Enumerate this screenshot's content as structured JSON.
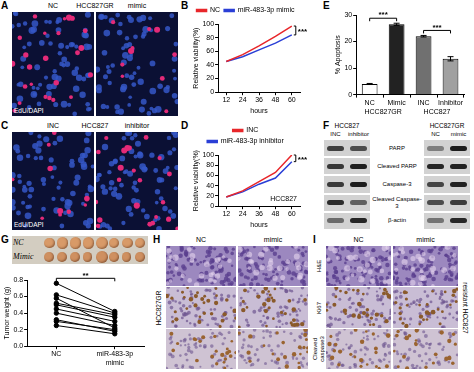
{
  "chart_data": [
    {
      "letter": "B",
      "type": "line",
      "x_label": "hours",
      "y_label": "Relative viability(%)",
      "x": [
        12,
        24,
        36,
        48,
        60
      ],
      "xlim": [
        6,
        66
      ],
      "xticks": [
        12,
        24,
        36,
        48,
        60
      ],
      "ylim": [
        0,
        100
      ],
      "yticks": [
        0,
        20,
        40,
        60,
        80,
        100
      ],
      "grid": false,
      "legend": "top",
      "series": [
        {
          "name": "NC",
          "color": "#e8262a",
          "values": [
            45,
            55,
            68,
            82,
            97
          ]
        },
        {
          "name": "miR-483-3p mimic",
          "color": "#2a3fd6",
          "values": [
            45,
            52,
            62,
            72,
            84
          ]
        }
      ],
      "annotations": [
        {
          "text": "***",
          "between": [
            "NC",
            "miR-483-3p mimic"
          ]
        }
      ]
    },
    {
      "letter": "E",
      "type": "bar",
      "y_label": "% Apoptosis",
      "categories": [
        "NC",
        "Mimic",
        "INC",
        "Inhibitor"
      ],
      "values": [
        4,
        26.5,
        22,
        13.5
      ],
      "errors": [
        0.2,
        0.4,
        0.3,
        0.8
      ],
      "colors": [
        "#ffffff",
        "#222222",
        "#707070",
        "#a0a0a0"
      ],
      "ylim": [
        0,
        30
      ],
      "yticks": [
        0,
        10,
        20,
        30
      ],
      "grid": false,
      "groups": [
        {
          "label": "HCC827GR",
          "categories": [
            "NC",
            "Mimic"
          ]
        },
        {
          "label": "HCC827",
          "categories": [
            "INC",
            "Inhibitor"
          ]
        }
      ],
      "annotations": [
        {
          "text": "***",
          "between": [
            "NC",
            "Mimic"
          ]
        },
        {
          "text": "***",
          "between": [
            "INC",
            "Inhibitor"
          ]
        }
      ]
    },
    {
      "letter": "D",
      "type": "line",
      "x_label": "hours",
      "y_label": "Relative viability(%)",
      "x": [
        12,
        24,
        36,
        48,
        60
      ],
      "xlim": [
        6,
        66
      ],
      "xticks": [
        12,
        24,
        36,
        48,
        60
      ],
      "ylim": [
        0,
        100
      ],
      "yticks": [
        0,
        20,
        40,
        60,
        80,
        100
      ],
      "grid": false,
      "legend": "top",
      "series": [
        {
          "name": "INC",
          "color": "#e8262a",
          "values": [
            18,
            30,
            48,
            66,
            100
          ]
        },
        {
          "name": "miR-483-3p inhibitor",
          "color": "#2a3fd6",
          "values": [
            18,
            28,
            43,
            55,
            87
          ]
        }
      ],
      "annotations": [
        {
          "text": "***",
          "between": [
            "INC",
            "miR-483-3p inhibitor"
          ]
        },
        {
          "text": "HCC827"
        }
      ]
    },
    {
      "letter": "G",
      "type": "line",
      "photo_labels": [
        "NC",
        "Mimic"
      ],
      "y_label": "Tumor weight (g)",
      "categories": [
        "NC",
        "miR-483-3p mimic"
      ],
      "ylim": [
        0,
        0.8
      ],
      "yticks": [
        {
          "value": 0,
          "label": "0.0"
        },
        0.2,
        0.4,
        0.6,
        0.8
      ],
      "grid": false,
      "color": "#000000",
      "marker": "circle",
      "series": [
        {
          "values": [
            0.76,
            0.42
          ]
        },
        {
          "values": [
            0.62,
            0.4
          ]
        },
        {
          "values": [
            0.58,
            0.22
          ]
        },
        {
          "values": [
            0.52,
            0.38
          ]
        },
        {
          "values": [
            0.5,
            0.35
          ]
        },
        {
          "values": [
            0.45,
            0.3
          ]
        },
        {
          "values": [
            0.4,
            0.25
          ]
        },
        {
          "values": [
            0.32,
            0.18
          ]
        },
        {
          "values": [
            0.3,
            0.2
          ]
        },
        {
          "values": [
            0.25,
            0.15
          ]
        }
      ],
      "annotations": [
        {
          "text": "**",
          "between": [
            "NC",
            "miR-483-3p mimic"
          ]
        }
      ]
    }
  ],
  "panels": [
    {
      "letter": "A",
      "type": "micrograph",
      "title": "HCC827GR",
      "images": [
        "NC",
        "mimic"
      ],
      "stain": "EdU/DAPI"
    },
    {
      "letter": "C",
      "type": "micrograph",
      "title": "HCC827",
      "images": [
        "INC",
        "inhibitor"
      ],
      "stain": "EdU/DAPI"
    },
    {
      "letter": "F",
      "type": "blot",
      "blocks": [
        {
          "title": "HCC827",
          "lanes": [
            "INC",
            "inhibitor"
          ]
        },
        {
          "title": "HCC827GR",
          "lanes": [
            "NC",
            "mimic"
          ]
        }
      ],
      "rows": [
        "PARP",
        "Cleaved PARP",
        "Caspase-3",
        "Cleaved Caspase-3",
        "β-actin"
      ]
    },
    {
      "letter": "H",
      "type": "ihc",
      "side_label": "HCC827GR",
      "columns": [
        "NC",
        "mimic"
      ]
    },
    {
      "letter": "I",
      "type": "ihc",
      "side_label": "resistant HCC827",
      "columns": [
        "NC",
        "mimic"
      ],
      "row_labels": [
        "H&E",
        "Ki67",
        "Cleaved caspase3"
      ]
    }
  ]
}
